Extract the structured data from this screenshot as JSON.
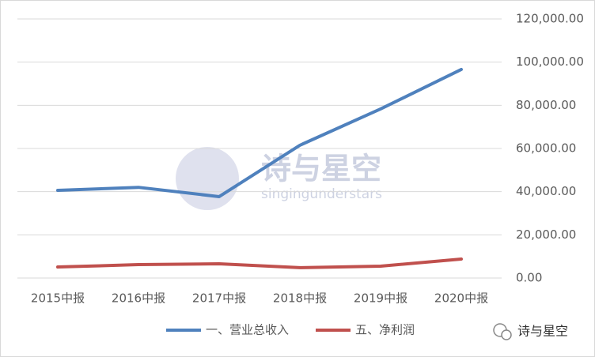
{
  "chart_data": {
    "type": "line",
    "categories": [
      "2015中报",
      "2016中报",
      "2017中报",
      "2018中报",
      "2019中报",
      "2020中报"
    ],
    "series": [
      {
        "name": "一、营业总收入",
        "color": "#4f81bd",
        "values": [
          40600,
          42000,
          37700,
          61500,
          78300,
          96600
        ]
      },
      {
        "name": "五、净利润",
        "color": "#c0504d",
        "values": [
          5100,
          6200,
          6600,
          4800,
          5500,
          8800
        ]
      }
    ],
    "ylim": [
      0,
      120000
    ],
    "yticks": [
      {
        "value": 0,
        "label": "0.00"
      },
      {
        "value": 20000,
        "label": "20,000.00"
      },
      {
        "value": 40000,
        "label": "40,000.00"
      },
      {
        "value": 60000,
        "label": "60,000.00"
      },
      {
        "value": 80000,
        "label": "80,000.00"
      },
      {
        "value": 100000,
        "label": "100,000.00"
      },
      {
        "value": 120000,
        "label": "120,000.00"
      }
    ],
    "grid": true,
    "legend": "bottom",
    "watermark": {
      "title": "诗与星空",
      "subtitle": "singingunderstars"
    },
    "brand": "诗与星空"
  }
}
